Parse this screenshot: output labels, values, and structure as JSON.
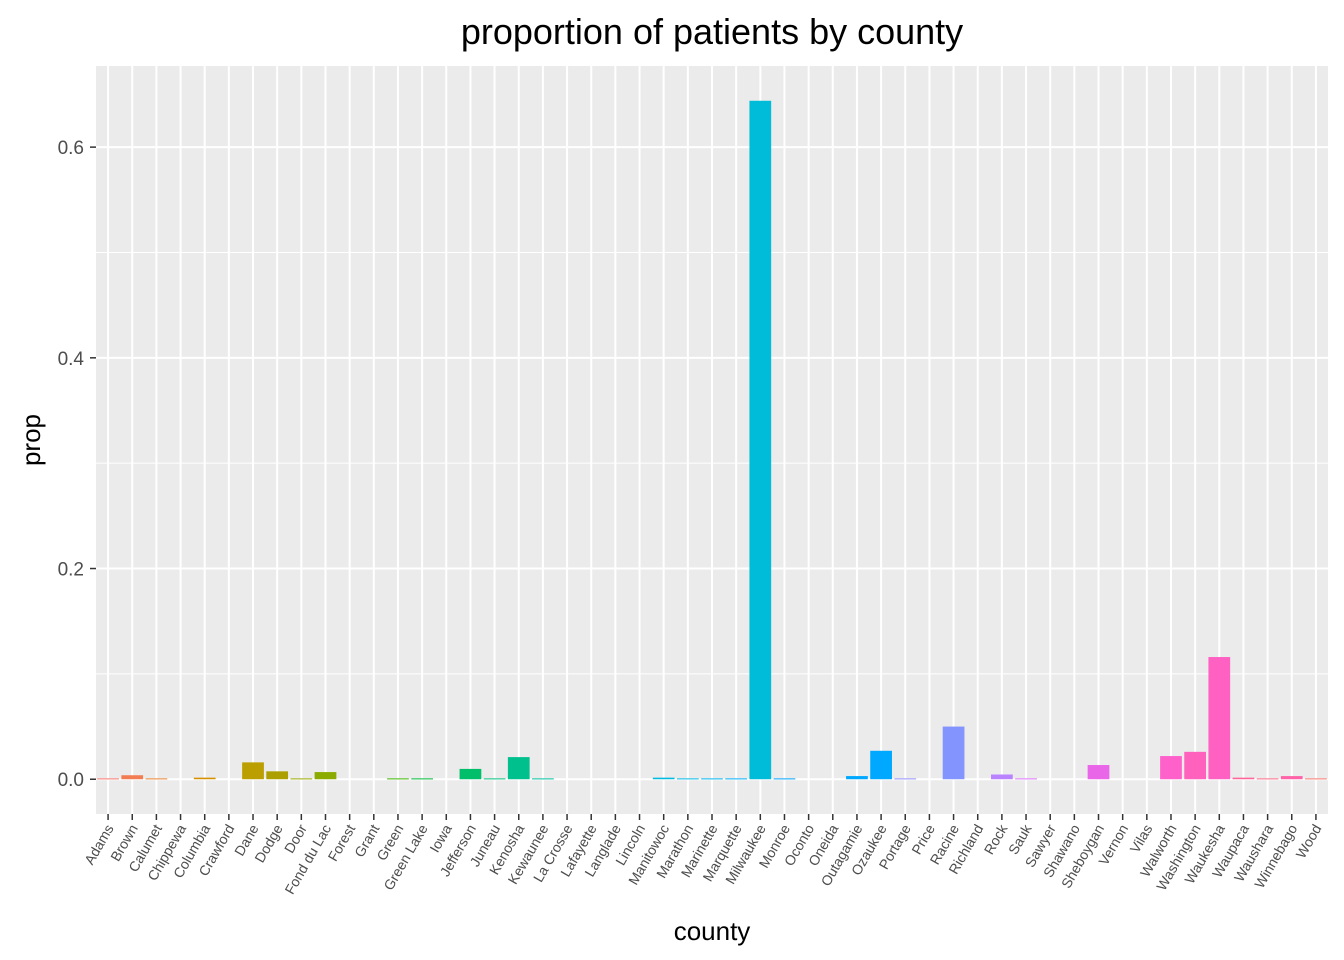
{
  "chart_data": {
    "type": "bar",
    "title": "proportion of patients by county",
    "xlabel": "county",
    "ylabel": "prop",
    "ylim": [
      -0.033,
      0.677
    ],
    "yticks": [
      0.0,
      0.2,
      0.4,
      0.6
    ],
    "ytick_labels": [
      "0.0",
      "0.2",
      "0.4",
      "0.6"
    ],
    "grid": true,
    "panel_background": "#EBEBEB",
    "grid_color": "#FFFFFF",
    "categories": [
      "Adams",
      "Brown",
      "Calumet",
      "Chippewa",
      "Columbia",
      "Crawford",
      "Dane",
      "Dodge",
      "Door",
      "Fond du Lac",
      "Forest",
      "Grant",
      "Green",
      "Green Lake",
      "Iowa",
      "Jefferson",
      "Juneau",
      "Kenosha",
      "Kewaunee",
      "La Crosse",
      "Lafayette",
      "Langlade",
      "Lincoln",
      "Manitowoc",
      "Marathon",
      "Marinette",
      "Marquette",
      "Milwaukee",
      "Monroe",
      "Oconto",
      "Oneida",
      "Outagamie",
      "Ozaukee",
      "Portage",
      "Price",
      "Racine",
      "Richland",
      "Rock",
      "Sauk",
      "Sawyer",
      "Shawano",
      "Sheboygan",
      "Vernon",
      "Vilas",
      "Walworth",
      "Washington",
      "Waukesha",
      "Waupaca",
      "Waushara",
      "Winnebago",
      "Wood"
    ],
    "values": [
      0.0008,
      0.0038,
      0.0008,
      0.0,
      0.0015,
      0.0,
      0.016,
      0.0075,
      0.0008,
      0.0068,
      0.0,
      0.0,
      0.0008,
      0.0008,
      0.0,
      0.0098,
      0.0008,
      0.021,
      0.0008,
      0.0,
      0.0,
      0.0,
      0.0,
      0.0015,
      0.0008,
      0.0008,
      0.0008,
      0.644,
      0.0008,
      0.0,
      0.0,
      0.003,
      0.027,
      0.0008,
      0.0,
      0.05,
      0.0,
      0.0045,
      0.0008,
      0.0,
      0.0,
      0.0135,
      0.0,
      0.0,
      0.022,
      0.026,
      0.116,
      0.0015,
      0.0008,
      0.003,
      0.0008
    ],
    "colors": [
      "#F8766D",
      "#F27D53",
      "#EA842F",
      "#E08B00",
      "#D59100",
      "#C89800",
      "#BB9E00",
      "#AC9F00",
      "#9CA700",
      "#8BAB00",
      "#76B000",
      "#5EB300",
      "#3DB700",
      "#00BA38",
      "#00BC53",
      "#00BE69",
      "#00C07C",
      "#00C08D",
      "#00C19E",
      "#00C1AD",
      "#00C0BC",
      "#00BFC9",
      "#00BDD5",
      "#00BBE0",
      "#00B8E7",
      "#00B4EF",
      "#00B0F6",
      "#00BCD8",
      "#00A4FF",
      "#3E9EFF",
      "#6B98FF",
      "#00A8FF",
      "#00A9FF",
      "#9590FF",
      "#A989FF",
      "#8494FF",
      "#C67CFF",
      "#B983FF",
      "#DC72FA",
      "#E66DEF",
      "#EF67E3",
      "#EA66E9",
      "#FA62D0",
      "#FE61C0",
      "#FF61CB",
      "#FF62BC",
      "#FF61C3",
      "#FF659A",
      "#FB6A88",
      "#FF64A8",
      "#F8766D"
    ]
  }
}
